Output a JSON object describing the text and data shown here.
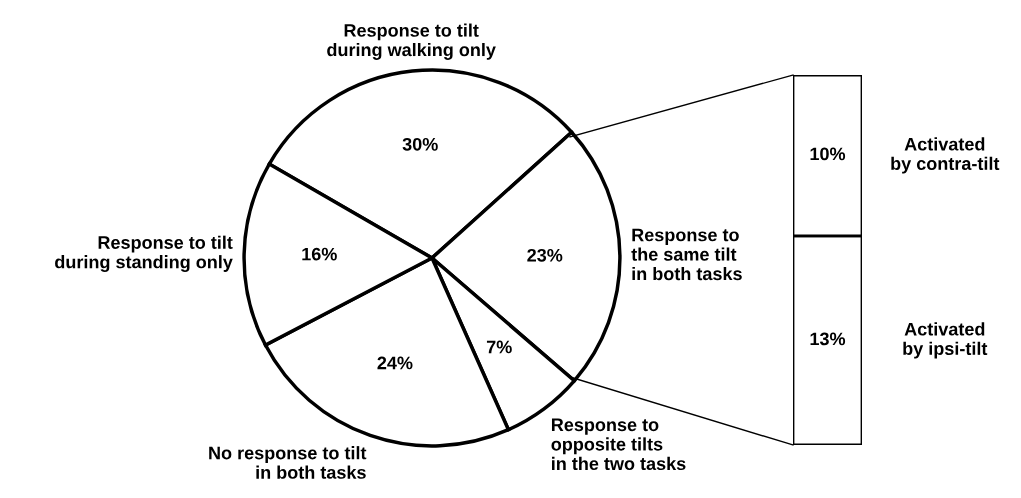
{
  "chart_data": [
    {
      "type": "pie",
      "categories": [
        "Response to tilt\nduring walking only",
        "Response to\nthe same tilt\nin both tasks",
        "Response to\nopposite tilts\nin the two tasks",
        "No response to tilt\nin both tasks",
        "Response to tilt\nduring standing only"
      ],
      "values": [
        30,
        23,
        7,
        24,
        16
      ],
      "value_labels": [
        "30%",
        "23%",
        "7%",
        "24%",
        "16%"
      ],
      "colors": [
        "#ffffff",
        "#ffffff",
        "#ffffff",
        "#ffffff",
        "#ffffff"
      ]
    },
    {
      "type": "bar",
      "stacked": true,
      "categories": [
        null
      ],
      "series": [
        {
          "name": "Activated\nby ipsi-tilt",
          "color": "#ffffff",
          "values": [
            13
          ],
          "value_labels": [
            "13%"
          ]
        },
        {
          "name": "Activated\nby contra-tilt",
          "color": "#ffffff",
          "values": [
            10
          ],
          "value_labels": [
            "10%"
          ]
        }
      ]
    }
  ]
}
